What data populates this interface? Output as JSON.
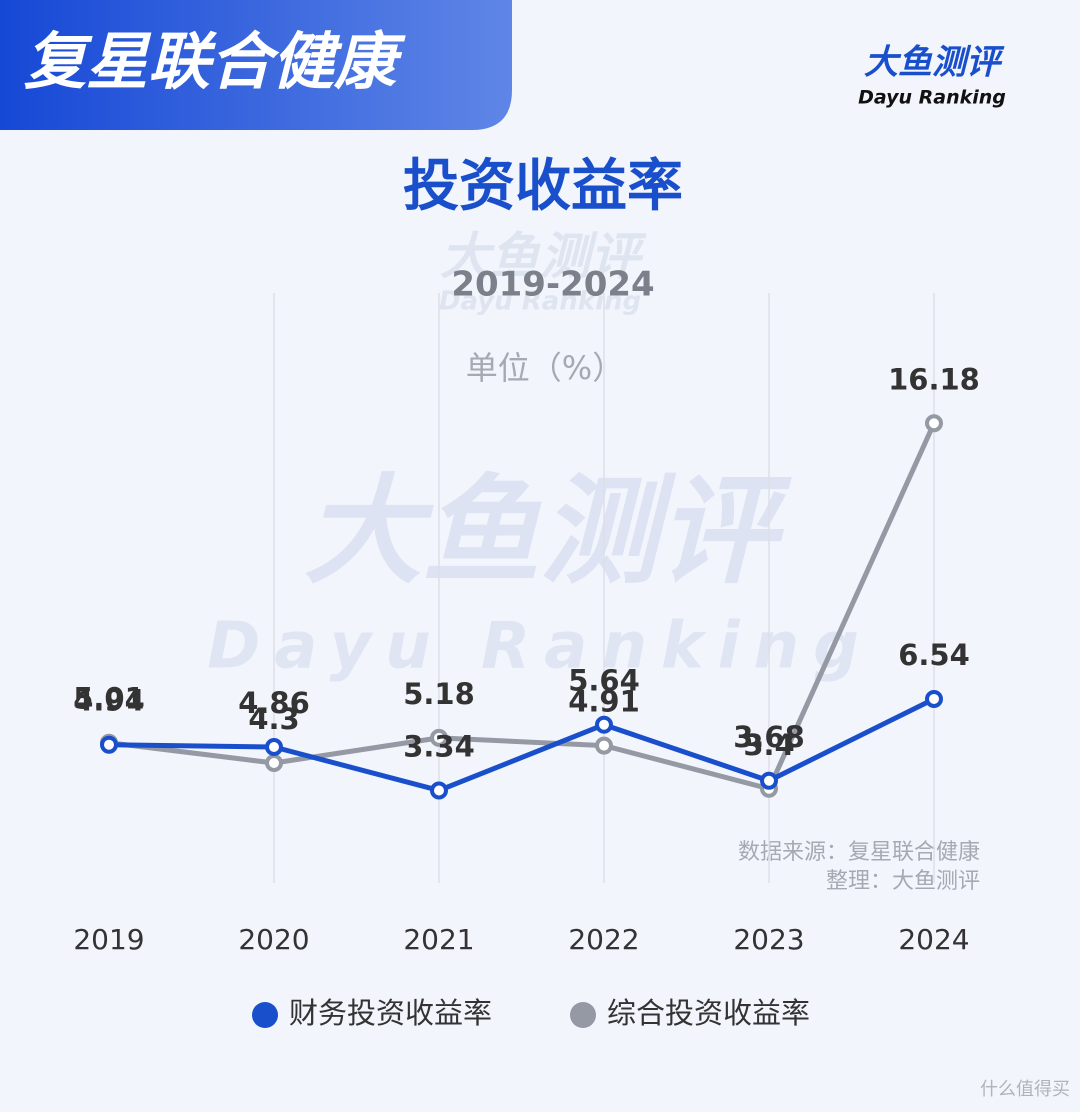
{
  "header": {
    "title": "复星联合健康",
    "logo": "大鱼测评",
    "logo_sub": "Dayu Ranking"
  },
  "watermark": {
    "text": "大鱼测评",
    "sub": "Dayu Ranking",
    "site": "什么值得买"
  },
  "chart_data": {
    "type": "line",
    "title": "投资收益率",
    "subtitle": "2019-2024",
    "unit": "单位（%）",
    "categories": [
      "2019",
      "2020",
      "2021",
      "2022",
      "2023",
      "2024"
    ],
    "series": [
      {
        "name": "财务投资收益率",
        "color": "#1a4fcc",
        "values": [
          4.94,
          4.86,
          3.34,
          5.64,
          3.68,
          6.54
        ]
      },
      {
        "name": "综合投资收益率",
        "color": "#9499a3",
        "values": [
          5.01,
          4.3,
          5.18,
          4.91,
          3.4,
          16.18
        ]
      }
    ],
    "ylim": [
      0,
      20
    ],
    "grid": true,
    "source": "数据来源：复星联合健康",
    "credit": "整理：大鱼测评"
  }
}
